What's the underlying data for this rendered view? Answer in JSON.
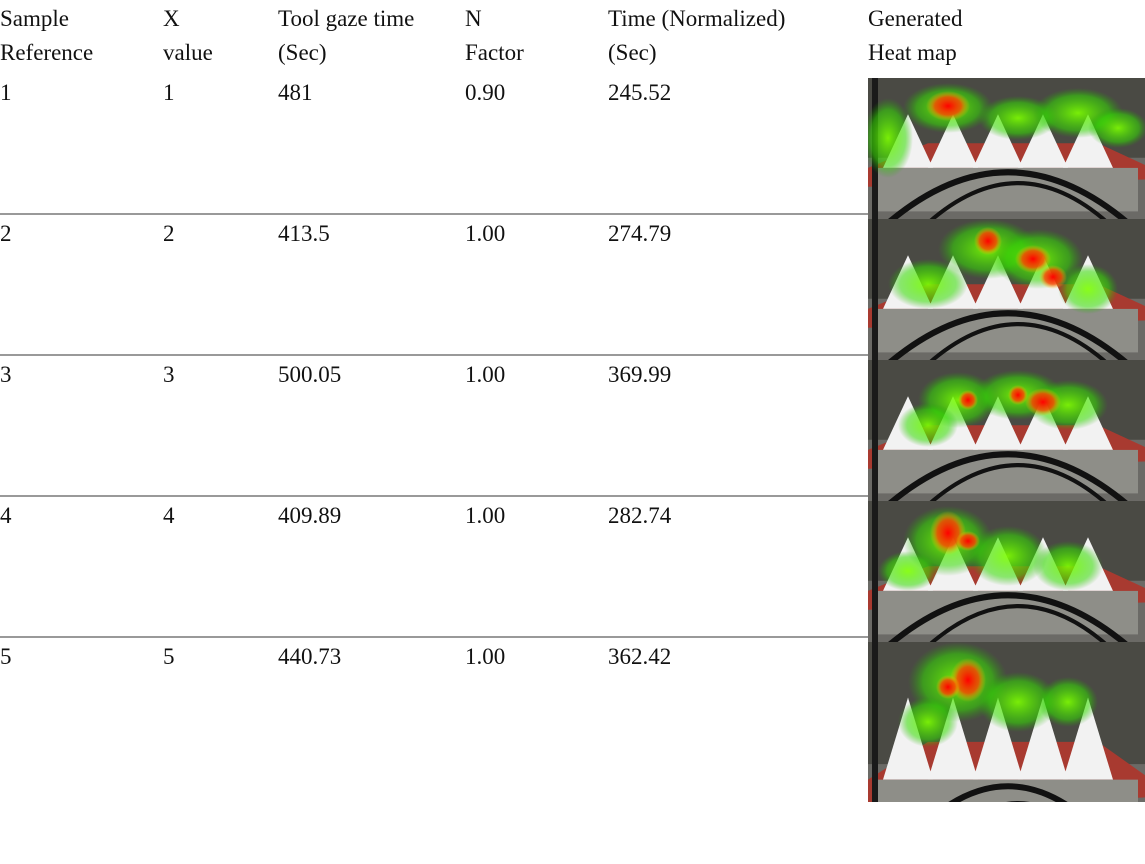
{
  "table": {
    "header": [
      [
        "Sample",
        "Reference"
      ],
      [
        "X",
        "value"
      ],
      [
        "Tool gaze time",
        "(Sec)"
      ],
      [
        "N",
        "Factor"
      ],
      [
        "Time (Normalized)",
        "(Sec)"
      ],
      [
        "Generated",
        "Heat map"
      ]
    ],
    "rows": [
      [
        "1",
        "1",
        "481",
        "0.90",
        "245.52"
      ],
      [
        "2",
        "2",
        "413.5",
        "1.00",
        "274.79"
      ],
      [
        "3",
        "3",
        "500.05",
        "1.00",
        "369.99"
      ],
      [
        "4",
        "4",
        "409.89",
        "1.00",
        "282.74"
      ],
      [
        "5",
        "5",
        "440.73",
        "1.00",
        "362.42"
      ]
    ]
  }
}
